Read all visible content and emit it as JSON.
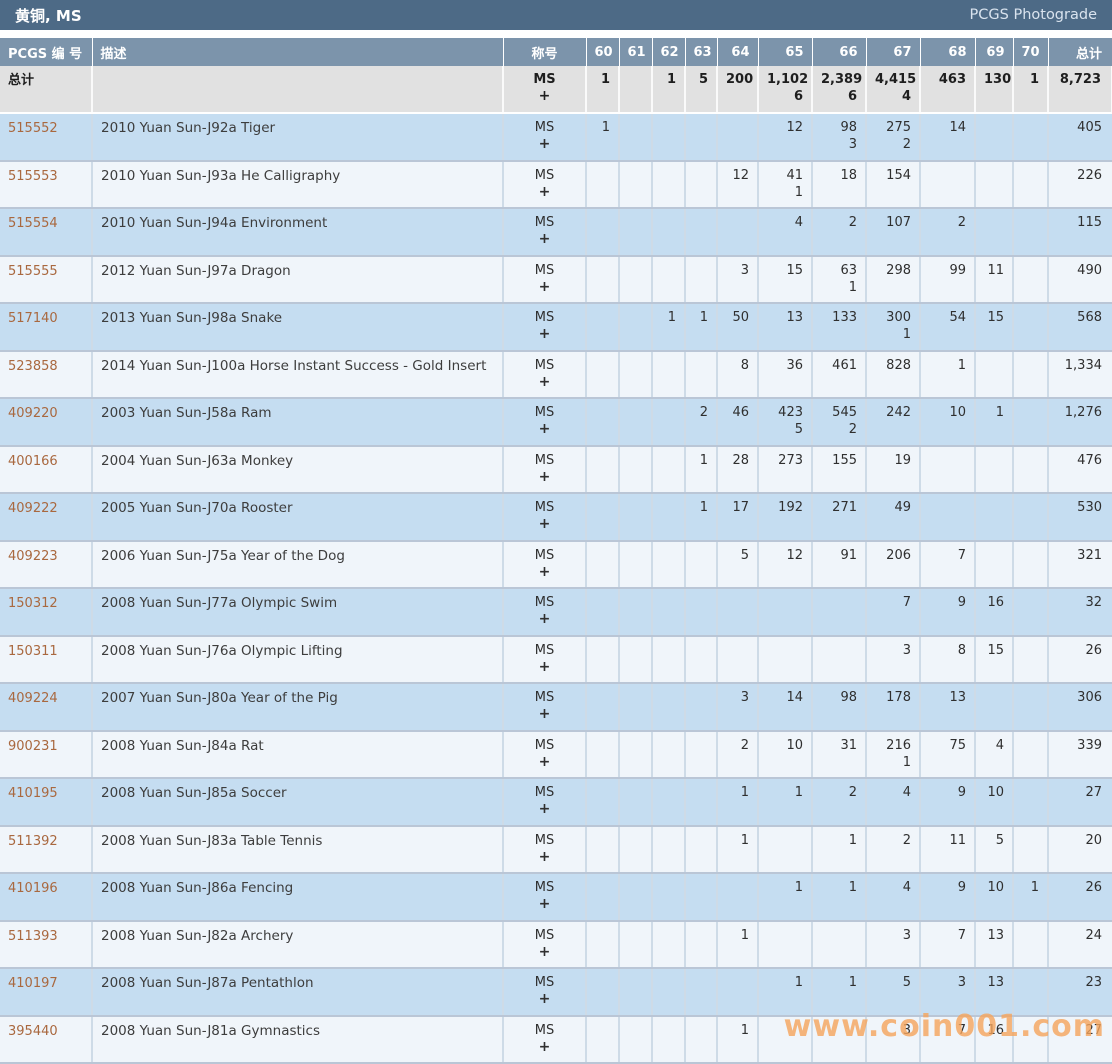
{
  "title_bar": {
    "title": "黄铜, MS",
    "photograde_link": "PCGS Photograde"
  },
  "table": {
    "headers": {
      "pcgs": "PCGS 编 号",
      "desc": "描述",
      "designation": "称号",
      "grades": [
        "60",
        "61",
        "62",
        "63",
        "64",
        "65",
        "66",
        "67",
        "68",
        "69",
        "70"
      ],
      "total": "总计"
    },
    "designation_value": "MS",
    "designation_plus": "+",
    "totals": {
      "label": "总计",
      "grades": [
        "1",
        "",
        "1",
        "5",
        "200",
        "1,102",
        "2,389",
        "4,415",
        "463",
        "130",
        "1"
      ],
      "grades_plus": [
        "",
        "",
        "",
        "",
        "",
        "6",
        "6",
        "4",
        "",
        "",
        ""
      ],
      "total": "8,723"
    },
    "rows": [
      {
        "pcgs": "515552",
        "desc": "2010 Yuan Sun-J92a Tiger",
        "grades": [
          "1",
          "",
          "",
          "",
          "",
          "12",
          "98",
          "275",
          "14",
          "",
          ""
        ],
        "grades_plus": [
          "",
          "",
          "",
          "",
          "",
          "",
          "3",
          "2",
          "",
          "",
          ""
        ],
        "total": "405"
      },
      {
        "pcgs": "515553",
        "desc": "2010 Yuan Sun-J93a He Calligraphy",
        "grades": [
          "",
          "",
          "",
          "",
          "12",
          "41",
          "18",
          "154",
          "",
          "",
          ""
        ],
        "grades_plus": [
          "",
          "",
          "",
          "",
          "",
          "1",
          "",
          "",
          "",
          "",
          ""
        ],
        "total": "226"
      },
      {
        "pcgs": "515554",
        "desc": "2010 Yuan Sun-J94a Environment",
        "grades": [
          "",
          "",
          "",
          "",
          "",
          "4",
          "2",
          "107",
          "2",
          "",
          ""
        ],
        "grades_plus": [
          "",
          "",
          "",
          "",
          "",
          "",
          "",
          "",
          "",
          "",
          ""
        ],
        "total": "115"
      },
      {
        "pcgs": "515555",
        "desc": "2012 Yuan Sun-J97a Dragon",
        "grades": [
          "",
          "",
          "",
          "",
          "3",
          "15",
          "63",
          "298",
          "99",
          "11",
          ""
        ],
        "grades_plus": [
          "",
          "",
          "",
          "",
          "",
          "",
          "1",
          "",
          "",
          "",
          ""
        ],
        "total": "490"
      },
      {
        "pcgs": "517140",
        "desc": "2013 Yuan Sun-J98a Snake",
        "grades": [
          "",
          "",
          "1",
          "1",
          "50",
          "13",
          "133",
          "300",
          "54",
          "15",
          ""
        ],
        "grades_plus": [
          "",
          "",
          "",
          "",
          "",
          "",
          "",
          "1",
          "",
          "",
          ""
        ],
        "total": "568"
      },
      {
        "pcgs": "523858",
        "desc": "2014 Yuan Sun-J100a Horse Instant Success - Gold Insert",
        "grades": [
          "",
          "",
          "",
          "",
          "8",
          "36",
          "461",
          "828",
          "1",
          "",
          ""
        ],
        "grades_plus": [
          "",
          "",
          "",
          "",
          "",
          "",
          "",
          "",
          "",
          "",
          ""
        ],
        "total": "1,334"
      },
      {
        "pcgs": "409220",
        "desc": "2003 Yuan Sun-J58a Ram",
        "grades": [
          "",
          "",
          "",
          "2",
          "46",
          "423",
          "545",
          "242",
          "10",
          "1",
          ""
        ],
        "grades_plus": [
          "",
          "",
          "",
          "",
          "",
          "5",
          "2",
          "",
          "",
          "",
          ""
        ],
        "total": "1,276"
      },
      {
        "pcgs": "400166",
        "desc": "2004 Yuan Sun-J63a Monkey",
        "grades": [
          "",
          "",
          "",
          "1",
          "28",
          "273",
          "155",
          "19",
          "",
          "",
          ""
        ],
        "grades_plus": [
          "",
          "",
          "",
          "",
          "",
          "",
          "",
          "",
          "",
          "",
          ""
        ],
        "total": "476"
      },
      {
        "pcgs": "409222",
        "desc": "2005 Yuan Sun-J70a Rooster",
        "grades": [
          "",
          "",
          "",
          "1",
          "17",
          "192",
          "271",
          "49",
          "",
          "",
          ""
        ],
        "grades_plus": [
          "",
          "",
          "",
          "",
          "",
          "",
          "",
          "",
          "",
          "",
          ""
        ],
        "total": "530"
      },
      {
        "pcgs": "409223",
        "desc": "2006 Yuan Sun-J75a Year of the Dog",
        "grades": [
          "",
          "",
          "",
          "",
          "5",
          "12",
          "91",
          "206",
          "7",
          "",
          ""
        ],
        "grades_plus": [
          "",
          "",
          "",
          "",
          "",
          "",
          "",
          "",
          "",
          "",
          ""
        ],
        "total": "321"
      },
      {
        "pcgs": "150312",
        "desc": "2008 Yuan Sun-J77a Olympic Swim",
        "grades": [
          "",
          "",
          "",
          "",
          "",
          "",
          "",
          "7",
          "9",
          "16",
          ""
        ],
        "grades_plus": [
          "",
          "",
          "",
          "",
          "",
          "",
          "",
          "",
          "",
          "",
          ""
        ],
        "total": "32"
      },
      {
        "pcgs": "150311",
        "desc": "2008 Yuan Sun-J76a Olympic Lifting",
        "grades": [
          "",
          "",
          "",
          "",
          "",
          "",
          "",
          "3",
          "8",
          "15",
          ""
        ],
        "grades_plus": [
          "",
          "",
          "",
          "",
          "",
          "",
          "",
          "",
          "",
          "",
          ""
        ],
        "total": "26"
      },
      {
        "pcgs": "409224",
        "desc": "2007 Yuan Sun-J80a Year of the Pig",
        "grades": [
          "",
          "",
          "",
          "",
          "3",
          "14",
          "98",
          "178",
          "13",
          "",
          ""
        ],
        "grades_plus": [
          "",
          "",
          "",
          "",
          "",
          "",
          "",
          "",
          "",
          "",
          ""
        ],
        "total": "306"
      },
      {
        "pcgs": "900231",
        "desc": "2008 Yuan Sun-J84a Rat",
        "grades": [
          "",
          "",
          "",
          "",
          "2",
          "10",
          "31",
          "216",
          "75",
          "4",
          ""
        ],
        "grades_plus": [
          "",
          "",
          "",
          "",
          "",
          "",
          "",
          "1",
          "",
          "",
          ""
        ],
        "total": "339"
      },
      {
        "pcgs": "410195",
        "desc": "2008 Yuan Sun-J85a Soccer",
        "grades": [
          "",
          "",
          "",
          "",
          "1",
          "1",
          "2",
          "4",
          "9",
          "10",
          ""
        ],
        "grades_plus": [
          "",
          "",
          "",
          "",
          "",
          "",
          "",
          "",
          "",
          "",
          ""
        ],
        "total": "27"
      },
      {
        "pcgs": "511392",
        "desc": "2008 Yuan Sun-J83a Table Tennis",
        "grades": [
          "",
          "",
          "",
          "",
          "1",
          "",
          "1",
          "2",
          "11",
          "5",
          ""
        ],
        "grades_plus": [
          "",
          "",
          "",
          "",
          "",
          "",
          "",
          "",
          "",
          "",
          ""
        ],
        "total": "20"
      },
      {
        "pcgs": "410196",
        "desc": "2008 Yuan Sun-J86a Fencing",
        "grades": [
          "",
          "",
          "",
          "",
          "",
          "1",
          "1",
          "4",
          "9",
          "10",
          "1"
        ],
        "grades_plus": [
          "",
          "",
          "",
          "",
          "",
          "",
          "",
          "",
          "",
          "",
          ""
        ],
        "total": "26"
      },
      {
        "pcgs": "511393",
        "desc": "2008 Yuan Sun-J82a Archery",
        "grades": [
          "",
          "",
          "",
          "",
          "1",
          "",
          "",
          "3",
          "7",
          "13",
          ""
        ],
        "grades_plus": [
          "",
          "",
          "",
          "",
          "",
          "",
          "",
          "",
          "",
          "",
          ""
        ],
        "total": "24"
      },
      {
        "pcgs": "410197",
        "desc": "2008 Yuan Sun-J87a Pentathlon",
        "grades": [
          "",
          "",
          "",
          "",
          "",
          "1",
          "1",
          "5",
          "3",
          "13",
          ""
        ],
        "grades_plus": [
          "",
          "",
          "",
          "",
          "",
          "",
          "",
          "",
          "",
          "",
          ""
        ],
        "total": "23"
      },
      {
        "pcgs": "395440",
        "desc": "2008 Yuan Sun-J81a Gymnastics",
        "grades": [
          "",
          "",
          "",
          "",
          "1",
          "",
          "",
          "3",
          "7",
          "16",
          ""
        ],
        "grades_plus": [
          "",
          "",
          "",
          "",
          "",
          "",
          "",
          "",
          "",
          "",
          ""
        ],
        "total": "27"
      }
    ]
  },
  "watermark": "www.coin001.com",
  "colors": {
    "title_bar": "#4d6a86",
    "column_header": "#7c94ab",
    "totals_row": "#e1e1e1",
    "row_blue": "#c5ddf1",
    "row_light": "#f0f5fa",
    "pcgs_link": "#a9683f",
    "watermark": "#f6a55c"
  }
}
